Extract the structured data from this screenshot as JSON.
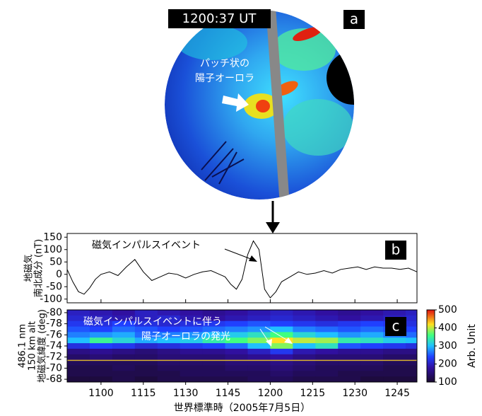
{
  "chart_data": [
    {
      "type": "image",
      "panel_label": "a",
      "timestamp": "1200:37 UT",
      "annotation": [
        "パッチ状の",
        "陽子オーロラ"
      ]
    },
    {
      "type": "line",
      "panel_label": "b",
      "ylabel": [
        "地磁気",
        "南北成分 (nT)"
      ],
      "annotation": "磁気インパルスイベント",
      "x": [
        648,
        650,
        652,
        654,
        656,
        658,
        660,
        663,
        666,
        669,
        672,
        675,
        678,
        681,
        684,
        687,
        690,
        693,
        696,
        699,
        702,
        704,
        706,
        708,
        710,
        712,
        714,
        716,
        718,
        720,
        722,
        724,
        727,
        730,
        733,
        736,
        739,
        742,
        745,
        748,
        751,
        754,
        757,
        760,
        763,
        766,
        769,
        772
      ],
      "values": [
        20,
        -30,
        -70,
        -80,
        -55,
        -20,
        0,
        10,
        -5,
        30,
        60,
        10,
        -25,
        -10,
        5,
        0,
        -15,
        0,
        10,
        15,
        0,
        -10,
        -40,
        -60,
        -20,
        80,
        135,
        100,
        -60,
        -95,
        -70,
        -30,
        -10,
        10,
        0,
        5,
        15,
        5,
        20,
        25,
        30,
        20,
        30,
        25,
        25,
        20,
        25,
        10
      ],
      "color": "#000000",
      "xlim": [
        648,
        772
      ],
      "ylim": [
        -115,
        165
      ],
      "yticks": [
        -100,
        -50,
        0,
        50,
        100,
        150
      ]
    },
    {
      "type": "heatmap",
      "panel_label": "c",
      "ylabel": [
        "486.1 nm",
        "150 km alt",
        "地磁気緯度 (deg)"
      ],
      "annotation": [
        "磁気インパルスイベントに伴う",
        "陽子オーロラの発光"
      ],
      "xlabel": "世界標準時（2005年7月5日）",
      "x_edges": [
        648,
        656,
        664,
        672,
        680,
        688,
        696,
        704,
        712,
        720,
        728,
        736,
        744,
        752,
        760,
        768,
        772
      ],
      "y_edges": [
        -80.5,
        -79.5,
        -78.5,
        -77.5,
        -76.5,
        -75.5,
        -74.5,
        -73.5,
        -72.5,
        -71.5,
        -70.5,
        -69.5,
        -68.5,
        -67.5
      ],
      "z": [
        [
          200,
          190,
          180,
          200,
          190,
          180,
          170,
          180,
          190,
          200,
          190,
          180,
          170,
          180,
          190,
          200
        ],
        [
          210,
          200,
          190,
          200,
          210,
          190,
          180,
          190,
          200,
          210,
          200,
          190,
          180,
          190,
          200,
          210
        ],
        [
          230,
          220,
          240,
          220,
          210,
          220,
          230,
          240,
          250,
          240,
          230,
          220,
          230,
          240,
          230,
          220
        ],
        [
          250,
          240,
          260,
          250,
          240,
          250,
          260,
          270,
          280,
          300,
          270,
          260,
          250,
          260,
          250,
          240
        ],
        [
          270,
          280,
          290,
          260,
          270,
          280,
          300,
          310,
          330,
          360,
          320,
          300,
          280,
          290,
          270,
          260
        ],
        [
          300,
          350,
          320,
          290,
          300,
          310,
          340,
          360,
          380,
          420,
          400,
          390,
          340,
          330,
          310,
          300
        ],
        [
          220,
          240,
          230,
          210,
          220,
          230,
          240,
          260,
          300,
          380,
          300,
          330,
          250,
          240,
          230,
          220
        ],
        [
          160,
          170,
          160,
          150,
          160,
          170,
          170,
          180,
          200,
          230,
          190,
          180,
          170,
          170,
          160,
          160
        ],
        [
          140,
          150,
          140,
          140,
          150,
          150,
          150,
          160,
          170,
          180,
          160,
          150,
          150,
          150,
          140,
          140
        ],
        [
          130,
          130,
          130,
          130,
          140,
          140,
          140,
          150,
          150,
          160,
          150,
          140,
          140,
          140,
          130,
          130
        ],
        [
          120,
          120,
          130,
          120,
          130,
          130,
          130,
          140,
          140,
          150,
          140,
          130,
          130,
          130,
          120,
          120
        ],
        [
          120,
          120,
          120,
          120,
          120,
          130,
          130,
          130,
          130,
          140,
          130,
          130,
          120,
          120,
          120,
          120
        ],
        [
          110,
          110,
          120,
          110,
          120,
          120,
          120,
          120,
          130,
          130,
          120,
          120,
          120,
          110,
          110,
          110
        ]
      ],
      "xlim": [
        648,
        772
      ],
      "ylim": [
        -67.5,
        -80.5
      ],
      "xticks": [
        {
          "value": 660,
          "label": "1100"
        },
        {
          "value": 675,
          "label": "1115"
        },
        {
          "value": 690,
          "label": "1130"
        },
        {
          "value": 705,
          "label": "1145"
        },
        {
          "value": 720,
          "label": "1200"
        },
        {
          "value": 735,
          "label": "1215"
        },
        {
          "value": 750,
          "label": "1230"
        },
        {
          "value": 765,
          "label": "1245"
        }
      ],
      "yticks": [
        -80,
        -78,
        -76,
        -74,
        -72,
        -70,
        -68
      ],
      "colorbar": {
        "label": "Arb. Unit",
        "lim": [
          100,
          500
        ],
        "ticks": [
          100,
          200,
          300,
          400,
          500
        ]
      },
      "hline": {
        "value": -71.4,
        "color": "#d8b030"
      }
    }
  ]
}
